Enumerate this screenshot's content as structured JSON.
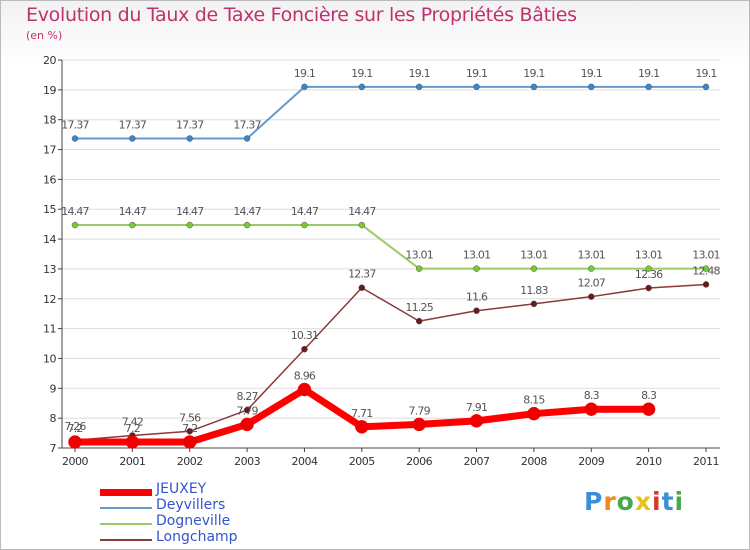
{
  "chart_data": {
    "type": "line",
    "title": "Evolution du Taux de Taxe Foncière sur les Propriétés Bâties",
    "ylabel": "(en %)",
    "xlabel": "",
    "ylim": [
      7,
      20
    ],
    "yticks": [
      7,
      8,
      9,
      10,
      11,
      12,
      13,
      14,
      15,
      16,
      17,
      18,
      19,
      20
    ],
    "categories": [
      "2000",
      "2001",
      "2002",
      "2003",
      "2004",
      "2005",
      "2006",
      "2007",
      "2008",
      "2009",
      "2010",
      "2011"
    ],
    "series": [
      {
        "name": "Deyvillers",
        "color": "#6699cc",
        "marker": "#3a86c8",
        "width": 2,
        "values": [
          17.37,
          17.37,
          17.37,
          17.37,
          19.1,
          19.1,
          19.1,
          19.1,
          19.1,
          19.1,
          19.1,
          19.1
        ],
        "labels": [
          "17.37",
          "17.37",
          "17.37",
          "17.37",
          "19.1",
          "19.1",
          "19.1",
          "19.1",
          "19.1",
          "19.1",
          "19.1",
          "19.1"
        ]
      },
      {
        "name": "Dogneville",
        "color": "#99cc66",
        "marker": "#77cc33",
        "width": 2,
        "values": [
          14.47,
          14.47,
          14.47,
          14.47,
          14.47,
          14.47,
          13.01,
          13.01,
          13.01,
          13.01,
          13.01,
          13.01
        ],
        "labels": [
          "14.47",
          "14.47",
          "14.47",
          "14.47",
          "14.47",
          "14.47",
          "13.01",
          "13.01",
          "13.01",
          "13.01",
          "13.01",
          "13.01"
        ]
      },
      {
        "name": "Longchamp",
        "color": "#8a3a3a",
        "marker": "#6b1a1a",
        "width": 1.5,
        "values": [
          7.26,
          7.42,
          7.56,
          8.27,
          10.31,
          12.37,
          11.25,
          11.6,
          11.83,
          12.07,
          12.36,
          12.48
        ],
        "labels": [
          "7.26",
          "7.42",
          "7.56",
          "8.27",
          "10.31",
          "12.37",
          "11.25",
          "11.6",
          "11.83",
          "12.07",
          "12.36",
          "12.48"
        ]
      },
      {
        "name": "JEUXEY",
        "color": "#ff0000",
        "marker": "#ee0000",
        "width": 7,
        "values": [
          7.2,
          7.2,
          7.2,
          7.79,
          8.96,
          7.71,
          7.79,
          7.91,
          8.15,
          8.3,
          8.3,
          null
        ],
        "labels": [
          "7.2",
          "7.2",
          "7.2",
          "7.79",
          "8.96",
          "7.71",
          "7.79",
          "7.91",
          "8.15",
          "8.3",
          "8.3",
          ""
        ]
      }
    ],
    "legend": [
      "JEUXEY",
      "Deyvillers",
      "Dogneville",
      "Longchamp"
    ],
    "legend_position": "bottom-left"
  },
  "logo": {
    "text": "Proxiti"
  },
  "colors": {
    "title": "#c0306e",
    "legend_text": "#3355cc"
  }
}
